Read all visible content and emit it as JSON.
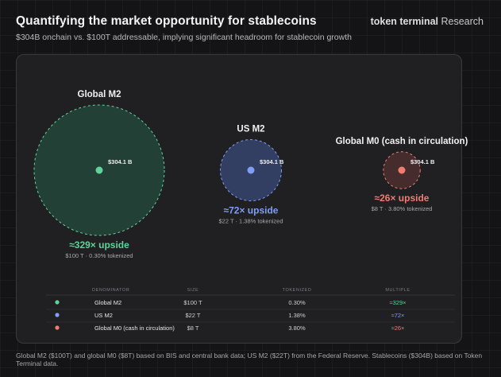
{
  "header": {
    "title": "Quantifying the market opportunity for stablecoins",
    "subtitle": "$304B onchain vs. $100T addressable, implying significant headroom for stablecoin growth",
    "brand_bold": "token terminal",
    "brand_light": "Research"
  },
  "chart_data": {
    "type": "bubble",
    "title": "Quantifying the market opportunity for stablecoins",
    "subtitle": "$304B onchain vs. $100T addressable, implying significant headroom for stablecoin growth",
    "stablecoin_label": "$304.1 B",
    "stablecoin_value_b": 304.1,
    "series": [
      {
        "name": "Global M2",
        "size_t": 100,
        "size_label": "$100 T",
        "tokenized_pct": 0.3,
        "tokenized_label": "0.30%",
        "multiple": 329,
        "upside_label": "≈329× upside",
        "detail_label": "$100 T · 0.30% tokenized",
        "multiple_label": "≈329×",
        "color": "#5fd39a",
        "fill": "#24463a"
      },
      {
        "name": "US M2",
        "size_t": 22,
        "size_label": "$22 T",
        "tokenized_pct": 1.38,
        "tokenized_label": "1.38%",
        "multiple": 72,
        "upside_label": "≈72× upside",
        "detail_label": "$22 T · 1.38% tokenized",
        "multiple_label": "≈72×",
        "color": "#7f9ff5",
        "fill": "#36456f"
      },
      {
        "name": "Global M0 (cash in circulation)",
        "size_t": 8,
        "size_label": "$8 T",
        "tokenized_pct": 3.8,
        "tokenized_label": "3.80%",
        "multiple": 26,
        "upside_label": "≈26× upside",
        "detail_label": "$8 T · 3.80% tokenized",
        "multiple_label": "≈26×",
        "color": "#ef7d70",
        "fill": "#4e2f2f"
      }
    ],
    "table": {
      "headers": [
        "DENOMINATOR",
        "SIZE",
        "TOKENIZED",
        "MULTIPLE"
      ]
    }
  },
  "footnote": "Global M2 ($100T) and global M0 ($8T) based on BIS and central bank data; US M2 ($22T) from the Federal Reserve. Stablecoins ($304B) based on Token Terminal data."
}
